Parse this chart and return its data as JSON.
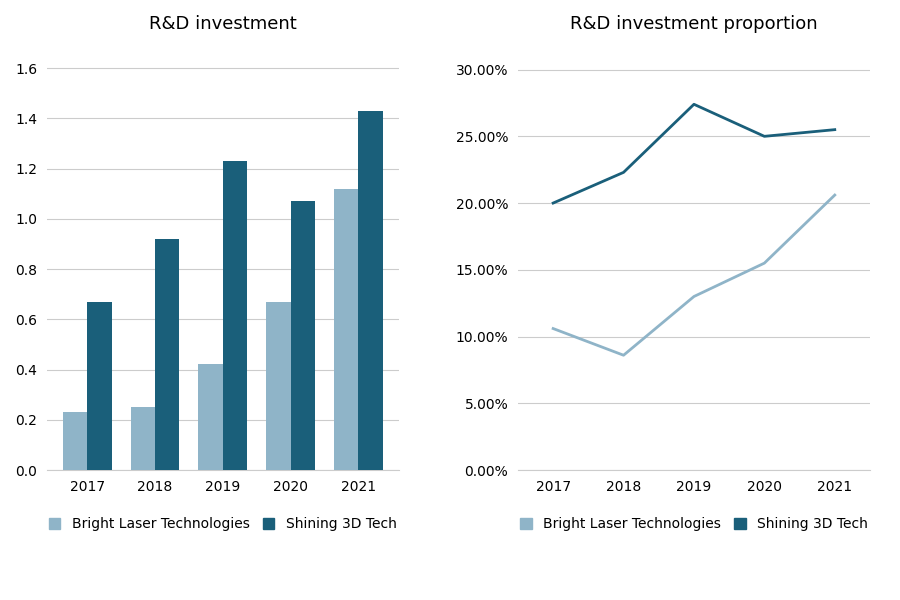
{
  "years": [
    2017,
    2018,
    2019,
    2020,
    2021
  ],
  "bar_blt": [
    0.23,
    0.25,
    0.42,
    0.67,
    1.12
  ],
  "bar_s3d": [
    0.67,
    0.92,
    1.23,
    1.07,
    1.43
  ],
  "line_blt": [
    0.106,
    0.086,
    0.13,
    0.155,
    0.206
  ],
  "line_s3d": [
    0.2,
    0.223,
    0.274,
    0.25,
    0.255
  ],
  "color_blt": "#8fb4c8",
  "color_s3d": "#1a5f7a",
  "title_bar": "R&D investment",
  "title_line": "R&D investment proportion",
  "legend_blt": "Bright Laser Technologies",
  "legend_s3d": "Shining 3D Tech",
  "bar_ylim": [
    0,
    1.7
  ],
  "bar_yticks": [
    0,
    0.2,
    0.4,
    0.6,
    0.8,
    1.0,
    1.2,
    1.4,
    1.6
  ],
  "line_ylim": [
    0,
    0.32
  ],
  "line_yticks": [
    0.0,
    0.05,
    0.1,
    0.15,
    0.2,
    0.25,
    0.3
  ],
  "bg_color": "#ffffff",
  "grid_color": "#cccccc",
  "title_fontsize": 13,
  "label_fontsize": 10,
  "legend_fontsize": 10
}
